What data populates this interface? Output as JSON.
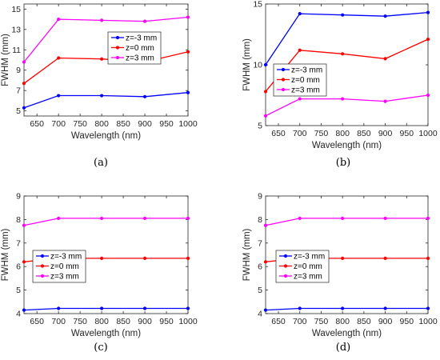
{
  "chart_data": [
    {
      "type": "line",
      "caption": "(a)",
      "xlabel": "Wavelength (nm)",
      "ylabel": "FWHM (mm)",
      "x": [
        620,
        700,
        800,
        900,
        1000
      ],
      "xlim": [
        620,
        1000
      ],
      "ylim": [
        4.5,
        15.5
      ],
      "xticks": [
        650,
        700,
        750,
        800,
        850,
        900,
        950,
        1000
      ],
      "yticks": [
        5,
        7,
        9,
        11,
        13,
        15
      ],
      "grid": false,
      "legend": "upper-center",
      "series": [
        {
          "name": "z=-3 mm",
          "color": "#0000ff",
          "values": [
            5.3,
            6.5,
            6.5,
            6.4,
            6.8
          ]
        },
        {
          "name": "z=0 mm",
          "color": "#ff0000",
          "values": [
            7.7,
            10.2,
            10.1,
            9.8,
            10.8
          ]
        },
        {
          "name": "z=3 mm",
          "color": "#ff00ff",
          "values": [
            9.8,
            14.0,
            13.9,
            13.8,
            14.2
          ]
        }
      ]
    },
    {
      "type": "line",
      "caption": "(b)",
      "xlabel": "Wavelength (nm)",
      "ylabel": "FWHM (mm)",
      "x": [
        620,
        700,
        800,
        900,
        1000
      ],
      "xlim": [
        620,
        1000
      ],
      "ylim": [
        5,
        15
      ],
      "xticks": [
        650,
        700,
        750,
        800,
        850,
        900,
        950,
        1000
      ],
      "yticks": [
        5,
        10,
        15
      ],
      "grid": false,
      "legend": "center-left",
      "series": [
        {
          "name": "z=-3 mm",
          "color": "#0000ff",
          "values": [
            10.0,
            14.2,
            14.1,
            14.0,
            14.3
          ]
        },
        {
          "name": "z=0 mm",
          "color": "#ff0000",
          "values": [
            7.8,
            11.2,
            10.9,
            10.5,
            12.1
          ]
        },
        {
          "name": "z=3 mm",
          "color": "#ff00ff",
          "values": [
            5.8,
            7.2,
            7.2,
            7.0,
            7.5
          ]
        }
      ]
    },
    {
      "type": "line",
      "caption": "(c)",
      "xlabel": "Wavelength (nm)",
      "ylabel": "FWHM (mm)",
      "x": [
        620,
        700,
        800,
        900,
        1000
      ],
      "xlim": [
        620,
        1000
      ],
      "ylim": [
        4,
        9
      ],
      "xticks": [
        650,
        700,
        750,
        800,
        850,
        900,
        950,
        1000
      ],
      "yticks": [
        4,
        5,
        6,
        7,
        8,
        9
      ],
      "grid": false,
      "legend": "lower-left",
      "series": [
        {
          "name": "z=-3 mm",
          "color": "#0000ff",
          "values": [
            4.15,
            4.22,
            4.22,
            4.22,
            4.22
          ]
        },
        {
          "name": "z=0 mm",
          "color": "#ff0000",
          "values": [
            6.2,
            6.35,
            6.35,
            6.35,
            6.35
          ]
        },
        {
          "name": "z=3 mm",
          "color": "#ff00ff",
          "values": [
            7.75,
            8.05,
            8.05,
            8.05,
            8.05
          ]
        }
      ]
    },
    {
      "type": "line",
      "caption": "(d)",
      "xlabel": "Wavelength (nm)",
      "ylabel": "FWHM (mm)",
      "x": [
        620,
        700,
        800,
        900,
        1000
      ],
      "xlim": [
        620,
        1000
      ],
      "ylim": [
        4,
        9
      ],
      "xticks": [
        650,
        700,
        750,
        800,
        850,
        900,
        950,
        1000
      ],
      "yticks": [
        4,
        5,
        6,
        7,
        8,
        9
      ],
      "grid": false,
      "legend": "lower-left",
      "series": [
        {
          "name": "z=-3 mm",
          "color": "#0000ff",
          "values": [
            4.15,
            4.22,
            4.22,
            4.22,
            4.22
          ]
        },
        {
          "name": "z=0 mm",
          "color": "#ff0000",
          "values": [
            6.2,
            6.35,
            6.35,
            6.35,
            6.35
          ]
        },
        {
          "name": "z=3 mm",
          "color": "#ff00ff",
          "values": [
            7.75,
            8.05,
            8.05,
            8.05,
            8.05
          ]
        }
      ]
    }
  ]
}
